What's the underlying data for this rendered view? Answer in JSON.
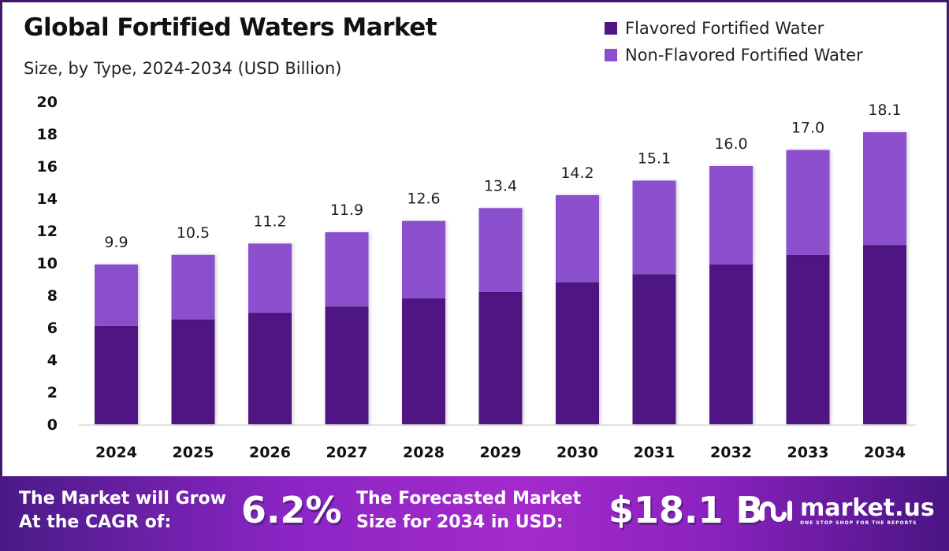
{
  "chart_data": {
    "type": "bar",
    "stacked": true,
    "title": "Global Fortified Waters Market",
    "subtitle": "Size, by Type, 2024-2034 (USD Billion)",
    "xlabel": "",
    "ylabel": "",
    "ylim": [
      0,
      20
    ],
    "yticks": [
      0,
      2,
      4,
      6,
      8,
      10,
      12,
      14,
      16,
      18,
      20
    ],
    "grid": false,
    "legend_position": "top-right",
    "categories": [
      "2024",
      "2025",
      "2026",
      "2027",
      "2028",
      "2029",
      "2030",
      "2031",
      "2032",
      "2033",
      "2034"
    ],
    "series": [
      {
        "name": "Flavored Fortified Water",
        "color": "#4f1783",
        "values": [
          6.1,
          6.5,
          6.9,
          7.3,
          7.8,
          8.2,
          8.8,
          9.3,
          9.9,
          10.5,
          11.1
        ]
      },
      {
        "name": "Non-Flavored Fortified Water",
        "color": "#8b4fcd",
        "values": [
          3.8,
          4.0,
          4.3,
          4.6,
          4.8,
          5.2,
          5.4,
          5.8,
          6.1,
          6.5,
          7.0
        ]
      }
    ],
    "totals": [
      "9.9",
      "10.5",
      "11.2",
      "11.9",
      "12.6",
      "13.4",
      "14.2",
      "15.1",
      "16.0",
      "17.0",
      "18.1"
    ]
  },
  "banner": {
    "cagr_label_line1": "The Market will Grow",
    "cagr_label_line2": "At the CAGR of:",
    "cagr_value": "6.2%",
    "forecast_label_line1": "The Forecasted Market",
    "forecast_label_line2": "Size for 2034 in USD:",
    "forecast_value": "$18.1 B",
    "logo_name": "market.us",
    "logo_tagline": "ONE STOP SHOP FOR THE REPORTS"
  },
  "colors": {
    "frame": "#3f1a6b",
    "flavored": "#4f1783",
    "non_flavored": "#8b4fcd"
  }
}
